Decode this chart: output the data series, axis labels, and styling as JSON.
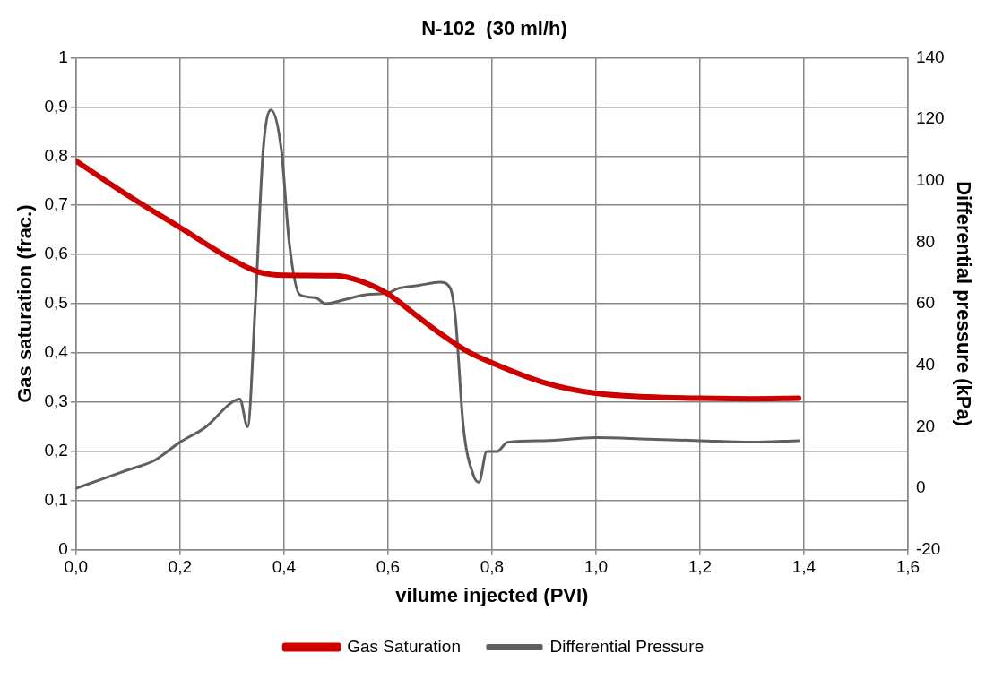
{
  "chart_data": {
    "type": "line",
    "title": "N-102  (30 ml/h)",
    "xlabel": "vilume injected (PVI)",
    "ylabel": "Gas saturation (frac.)",
    "y2label": "Differential pressure (kPa)",
    "xlim": [
      0,
      1.6
    ],
    "xticks": [
      {
        "value": 0,
        "label": "0,0"
      },
      {
        "value": 0.2,
        "label": "0,2"
      },
      {
        "value": 0.4,
        "label": "0,4"
      },
      {
        "value": 0.6,
        "label": "0,6"
      },
      {
        "value": 0.8,
        "label": "0,8"
      },
      {
        "value": 1,
        "label": "1,0"
      },
      {
        "value": 1.2,
        "label": "1,2"
      },
      {
        "value": 1.4,
        "label": "1,4"
      },
      {
        "value": 1.6,
        "label": "1,6"
      }
    ],
    "ylim": [
      0,
      1
    ],
    "yticks": [
      0,
      {
        "value": 0.1,
        "label": "0,1"
      },
      {
        "value": 0.2,
        "label": "0,2"
      },
      {
        "value": 0.3,
        "label": "0,3"
      },
      {
        "value": 0.4,
        "label": "0,4"
      },
      {
        "value": 0.5,
        "label": "0,5"
      },
      {
        "value": 0.6,
        "label": "0,6"
      },
      {
        "value": 0.7,
        "label": "0,7"
      },
      {
        "value": 0.8,
        "label": "0,8"
      },
      {
        "value": 0.9,
        "label": "0,9"
      },
      1
    ],
    "y2lim": [
      -20,
      140
    ],
    "y2ticks": [
      -20,
      0,
      20,
      40,
      60,
      80,
      100,
      120,
      140
    ],
    "grid": true,
    "legend": "bottom",
    "marker": "none",
    "line_style": "solid",
    "series": [
      {
        "name": "Gas Saturation",
        "color": "#cc0000",
        "x": [
          0,
          0.1,
          0.2,
          0.3,
          0.35,
          0.4,
          0.5,
          0.55,
          0.6,
          0.65,
          0.7,
          0.75,
          0.8,
          0.9,
          1.0,
          1.1,
          1.2,
          1.3,
          1.39
        ],
        "values": [
          0.79,
          0.72,
          0.655,
          0.59,
          0.565,
          0.558,
          0.557,
          0.545,
          0.52,
          0.48,
          0.44,
          0.405,
          0.38,
          0.34,
          0.318,
          0.311,
          0.308,
          0.307,
          0.308
        ]
      },
      {
        "name": "Differential Pressure",
        "color": "#5f5f5f",
        "axis": "y2",
        "x": [
          0,
          0.05,
          0.1,
          0.15,
          0.2,
          0.25,
          0.3,
          0.315,
          0.33,
          0.345,
          0.36,
          0.375,
          0.395,
          0.41,
          0.43,
          0.46,
          0.48,
          0.52,
          0.56,
          0.6,
          0.62,
          0.66,
          0.7,
          0.72,
          0.73,
          0.745,
          0.765,
          0.775,
          0.79,
          0.81,
          0.83,
          0.9,
          1.0,
          1.1,
          1.2,
          1.3,
          1.39
        ],
        "values": [
          0,
          3,
          6,
          9,
          15,
          20,
          28,
          29,
          20,
          60,
          110,
          123,
          110,
          80,
          63,
          62,
          60,
          61.5,
          63,
          63.5,
          65,
          66,
          67,
          65,
          55,
          20,
          4,
          2,
          12,
          12,
          15,
          15.5,
          16.5,
          16,
          15.5,
          15,
          15.5
        ]
      }
    ]
  }
}
